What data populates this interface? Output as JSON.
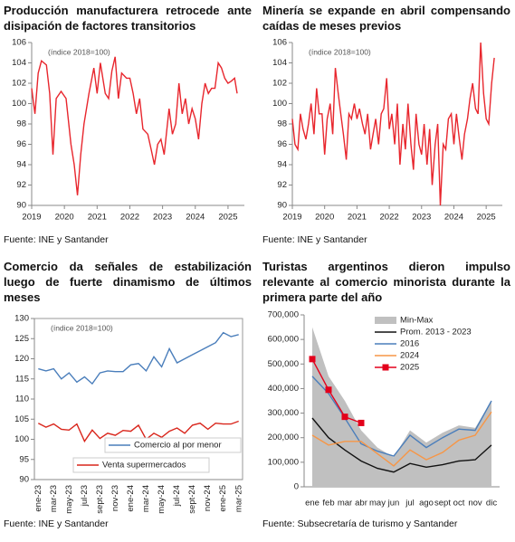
{
  "chart_data": [
    {
      "type": "line",
      "title": "Producción manufacturera retrocede ante disipación de factores transitorios",
      "subtitle": "(índice 2018=100)",
      "source": "Fuente: INE y Santander",
      "x": [
        2019.0,
        2019.1,
        2019.2,
        2019.3,
        2019.45,
        2019.55,
        2019.65,
        2019.75,
        2019.9,
        2020.05,
        2020.2,
        2020.3,
        2020.4,
        2020.5,
        2020.6,
        2020.75,
        2020.9,
        2021.0,
        2021.1,
        2021.25,
        2021.35,
        2021.45,
        2021.55,
        2021.65,
        2021.75,
        2021.9,
        2022.0,
        2022.1,
        2022.2,
        2022.3,
        2022.4,
        2022.55,
        2022.65,
        2022.75,
        2022.85,
        2022.95,
        2023.05,
        2023.2,
        2023.3,
        2023.4,
        2023.5,
        2023.6,
        2023.7,
        2023.8,
        2023.9,
        2024.0,
        2024.1,
        2024.2,
        2024.3,
        2024.4,
        2024.5,
        2024.6,
        2024.7,
        2024.8,
        2024.9,
        2025.0,
        2025.1,
        2025.2,
        2025.28
      ],
      "series": [
        {
          "name": "Producción manufacturera",
          "color": "#e8262d",
          "values": [
            101.5,
            99,
            103,
            104.2,
            103.8,
            101,
            95,
            100.5,
            101.2,
            100.5,
            96,
            94,
            91,
            95,
            98,
            101,
            103.5,
            101,
            104,
            101,
            100.5,
            103.2,
            104.6,
            100.5,
            103,
            102.5,
            102.5,
            101,
            99,
            100.5,
            97.5,
            97,
            95.5,
            94,
            96,
            96.5,
            95,
            99.5,
            97,
            98,
            102,
            99,
            100.5,
            98,
            99.5,
            98.5,
            96.5,
            100,
            102,
            101,
            101.5,
            101.5,
            104,
            103.5,
            102.5,
            102,
            102.2,
            102.5,
            101
          ]
        }
      ],
      "xlim": [
        2019,
        2025.5
      ],
      "xticks": [
        2019,
        2020,
        2021,
        2022,
        2023,
        2024,
        2025
      ],
      "ylim": [
        90,
        106
      ],
      "yticks": [
        90,
        92,
        94,
        96,
        98,
        100,
        102,
        104,
        106
      ],
      "legend": false
    },
    {
      "type": "line",
      "title": "Minería se expande en abril compensando caídas de meses previos",
      "subtitle": "(índice 2018=100)",
      "source": "Fuente: INE y Santander",
      "x": [
        2019.0,
        2019.08,
        2019.17,
        2019.25,
        2019.33,
        2019.42,
        2019.5,
        2019.58,
        2019.67,
        2019.75,
        2019.83,
        2019.92,
        2020.0,
        2020.08,
        2020.17,
        2020.25,
        2020.33,
        2020.42,
        2020.5,
        2020.58,
        2020.67,
        2020.75,
        2020.83,
        2020.92,
        2021.0,
        2021.08,
        2021.17,
        2021.25,
        2021.33,
        2021.42,
        2021.5,
        2021.58,
        2021.67,
        2021.75,
        2021.83,
        2021.92,
        2022.0,
        2022.08,
        2022.17,
        2022.25,
        2022.33,
        2022.42,
        2022.5,
        2022.58,
        2022.67,
        2022.75,
        2022.83,
        2022.92,
        2023.0,
        2023.08,
        2023.17,
        2023.25,
        2023.33,
        2023.42,
        2023.5,
        2023.58,
        2023.67,
        2023.75,
        2023.83,
        2023.92,
        2024.0,
        2024.08,
        2024.17,
        2024.25,
        2024.33,
        2024.42,
        2024.5,
        2024.58,
        2024.67,
        2024.75,
        2024.83,
        2024.92,
        2025.0,
        2025.08,
        2025.17,
        2025.25
      ],
      "series": [
        {
          "name": "Minería",
          "color": "#e8262d",
          "values": [
            98.5,
            96,
            95.5,
            99,
            97.5,
            96.5,
            98,
            100,
            97,
            101.5,
            99,
            99,
            95,
            98.5,
            100,
            97,
            103.5,
            101,
            99,
            97,
            94.5,
            99,
            98.5,
            100,
            98.5,
            99.5,
            98,
            97,
            99,
            95.5,
            97,
            98.5,
            96,
            99,
            99.5,
            102.5,
            97.5,
            99,
            96,
            100,
            94,
            98,
            95.5,
            100,
            96,
            93.5,
            99,
            96,
            95,
            98,
            94,
            97.5,
            92,
            96,
            98,
            90,
            96,
            95.5,
            98.5,
            99,
            96,
            99,
            96.5,
            94.5,
            97,
            98.5,
            100.5,
            102,
            99.5,
            99,
            106,
            101,
            98.5,
            98,
            102,
            104.5
          ]
        }
      ],
      "xlim": [
        2019,
        2025.5
      ],
      "xticks": [
        2019,
        2020,
        2021,
        2022,
        2023,
        2024,
        2025
      ],
      "ylim": [
        90,
        106
      ],
      "yticks": [
        90,
        92,
        94,
        96,
        98,
        100,
        102,
        104,
        106
      ],
      "legend": false
    },
    {
      "type": "line",
      "title": "Comercio da señales de estabilización luego de fuerte dinamismo de últimos meses",
      "subtitle": "(índice 2018=100)",
      "source": "Fuente: INE y Santander",
      "categories": [
        "ene-23",
        null,
        "mar-23",
        null,
        "may-23",
        null,
        "jul-23",
        null,
        "sept-23",
        null,
        "nov-23",
        null,
        "ene-24",
        null,
        "mar-24",
        null,
        "may-24",
        null,
        "jul-24",
        null,
        "sept-24",
        null,
        "nov-24",
        null,
        "ene-25",
        null,
        "mar-25"
      ],
      "series": [
        {
          "name": "Comercio al por menor",
          "color": "#4a7ebb",
          "values": [
            117.5,
            117,
            117.5,
            115,
            116.5,
            114.2,
            115.5,
            113.8,
            116.5,
            117,
            116.8,
            116.8,
            118.5,
            118.8,
            117,
            120.5,
            118,
            122.5,
            119,
            120,
            121,
            122,
            123,
            124,
            126.5,
            125.5,
            126
          ]
        },
        {
          "name": "Venta supermercados",
          "color": "#d9261c",
          "values": [
            104,
            103,
            103.8,
            102.5,
            102.3,
            103.8,
            99.5,
            102.3,
            100.2,
            101.5,
            101,
            102.2,
            102,
            103.5,
            100,
            101.5,
            100.5,
            102,
            102.8,
            101.5,
            103.5,
            104,
            102.5,
            104,
            103.8,
            103.8,
            104.5
          ]
        }
      ],
      "ylim": [
        90,
        130
      ],
      "yticks": [
        90,
        95,
        100,
        105,
        110,
        115,
        120,
        125,
        130
      ],
      "legend": "inline",
      "frame": true
    },
    {
      "type": "line",
      "title": "Turistas argentinos dieron impulso relevante al comercio minorista durante la primera parte del año",
      "source": "Fuente: Subsecretaría de turismo y Santander",
      "categories": [
        "ene",
        "feb",
        "mar",
        "abr",
        "may",
        "jun",
        "jul",
        "ago",
        "sept",
        "oct",
        "nov",
        "dic"
      ],
      "series": [
        {
          "name": "Min-Max",
          "color": "#c0c0c0",
          "min": [
            0,
            0,
            0,
            0,
            0,
            0,
            0,
            0,
            0,
            0,
            0,
            0
          ],
          "values": [
            650000,
            450000,
            350000,
            230000,
            160000,
            120000,
            230000,
            180000,
            220000,
            250000,
            240000,
            350000
          ]
        },
        {
          "name": "Prom. 2013 - 2023",
          "color": "#111111",
          "values": [
            280000,
            200000,
            150000,
            105000,
            75000,
            60000,
            95000,
            80000,
            90000,
            105000,
            110000,
            170000
          ]
        },
        {
          "name": "2016",
          "color": "#4a7ebb",
          "values": [
            450000,
            380000,
            280000,
            175000,
            145000,
            125000,
            210000,
            160000,
            200000,
            235000,
            230000,
            350000
          ]
        },
        {
          "name": "2024",
          "color": "#f79646",
          "values": [
            210000,
            170000,
            185000,
            185000,
            135000,
            85000,
            150000,
            110000,
            140000,
            190000,
            210000,
            305000
          ]
        },
        {
          "name": "2025",
          "color": "#e3001b",
          "marker": "square",
          "values": [
            520000,
            395000,
            285000,
            260000,
            null,
            null,
            null,
            null,
            null,
            null,
            null,
            null
          ]
        }
      ],
      "ylim": [
        0,
        700000
      ],
      "yticks": [
        0,
        {
          "value": 100000,
          "label": "100,000"
        },
        {
          "value": 200000,
          "label": "200,000"
        },
        {
          "value": 300000,
          "label": "300,000"
        },
        {
          "value": 400000,
          "label": "400,000"
        },
        {
          "value": 500000,
          "label": "500,000"
        },
        {
          "value": 600000,
          "label": "600,000"
        },
        {
          "value": 700000,
          "label": "700,000"
        }
      ],
      "legend": "top-right"
    }
  ]
}
